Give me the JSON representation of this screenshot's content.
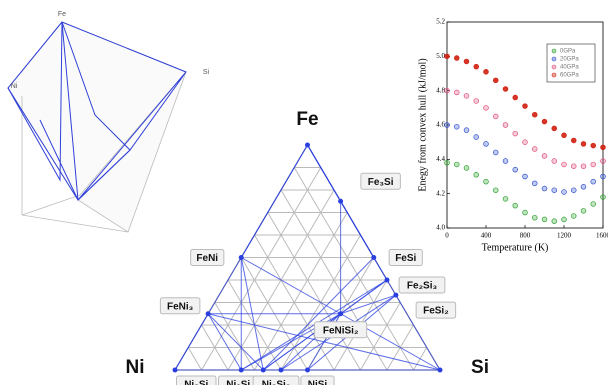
{
  "inset_3d": {
    "labels": [
      "Fe",
      "Ni",
      "Si"
    ]
  },
  "chart_data": [
    {
      "type": "ternary",
      "corners": [
        "Fe",
        "Ni",
        "Si"
      ],
      "nodes": [
        {
          "label": "Fe₃Si",
          "fe": 0.75,
          "si": 0.25
        },
        {
          "label": "FeNi",
          "fe": 0.5,
          "si": 0
        },
        {
          "label": "FeSi",
          "fe": 0.5,
          "si": 0.5
        },
        {
          "label": "Fe₂Si₃",
          "fe": 0.4,
          "si": 0.6
        },
        {
          "label": "FeSi₂",
          "fe": 0.333,
          "si": 0.667
        },
        {
          "label": "FeNi₃",
          "fe": 0.25,
          "si": 0
        },
        {
          "label": "FeNiSi₂",
          "fe": 0.25,
          "si": 0.5
        },
        {
          "label": "Ni₃Si",
          "fe": 0,
          "si": 0.25
        },
        {
          "label": "Ni₂Si",
          "fe": 0,
          "si": 0.333
        },
        {
          "label": "Ni₃Si₂",
          "fe": 0,
          "si": 0.4
        },
        {
          "label": "NiSi",
          "fe": 0,
          "si": 0.5
        }
      ],
      "color": "#2a3fe0"
    },
    {
      "type": "line",
      "x_label": "Temperature (K)",
      "y_label": "Enegy from convex hull (kJ/mol)",
      "x": [
        0,
        100,
        200,
        300,
        400,
        500,
        600,
        700,
        800,
        900,
        1000,
        1100,
        1200,
        1300,
        1400,
        1500,
        1600
      ],
      "series": [
        {
          "name": "0GPa",
          "color": "#2ca02c",
          "values": [
            4.38,
            4.37,
            4.35,
            4.31,
            4.27,
            4.22,
            4.17,
            4.13,
            4.09,
            4.06,
            4.05,
            4.04,
            4.05,
            4.07,
            4.1,
            4.14,
            4.18
          ]
        },
        {
          "name": "20GPa",
          "color": "#3050d0",
          "values": [
            4.6,
            4.59,
            4.57,
            4.53,
            4.49,
            4.44,
            4.39,
            4.34,
            4.3,
            4.26,
            4.23,
            4.22,
            4.21,
            4.22,
            4.24,
            4.27,
            4.3
          ]
        },
        {
          "name": "40GPa",
          "color": "#e0507a",
          "values": [
            4.8,
            4.79,
            4.77,
            4.74,
            4.7,
            4.65,
            4.6,
            4.55,
            4.5,
            4.46,
            4.42,
            4.39,
            4.37,
            4.36,
            4.36,
            4.37,
            4.39
          ]
        },
        {
          "name": "60GPa",
          "color": "#d02010",
          "values": [
            5.0,
            4.99,
            4.97,
            4.94,
            4.91,
            4.86,
            4.81,
            4.76,
            4.71,
            4.66,
            4.62,
            4.58,
            4.54,
            4.51,
            4.49,
            4.48,
            4.47
          ]
        }
      ],
      "xlim": [
        0,
        1600
      ],
      "xticks": [
        0,
        400,
        800,
        1200,
        1600
      ],
      "ylim": [
        4.0,
        5.2
      ],
      "yticks": [
        {
          "value": 4.0,
          "label": "4.0"
        },
        {
          "value": 4.2,
          "label": "4.2"
        },
        {
          "value": 4.4,
          "label": "4.4"
        },
        {
          "value": 4.6,
          "label": "4.6"
        },
        {
          "value": 4.8,
          "label": "4.8"
        },
        {
          "value": 5.0,
          "label": "5.0"
        },
        {
          "value": 5.2,
          "label": "5.2"
        }
      ],
      "legend": "upper right"
    }
  ]
}
